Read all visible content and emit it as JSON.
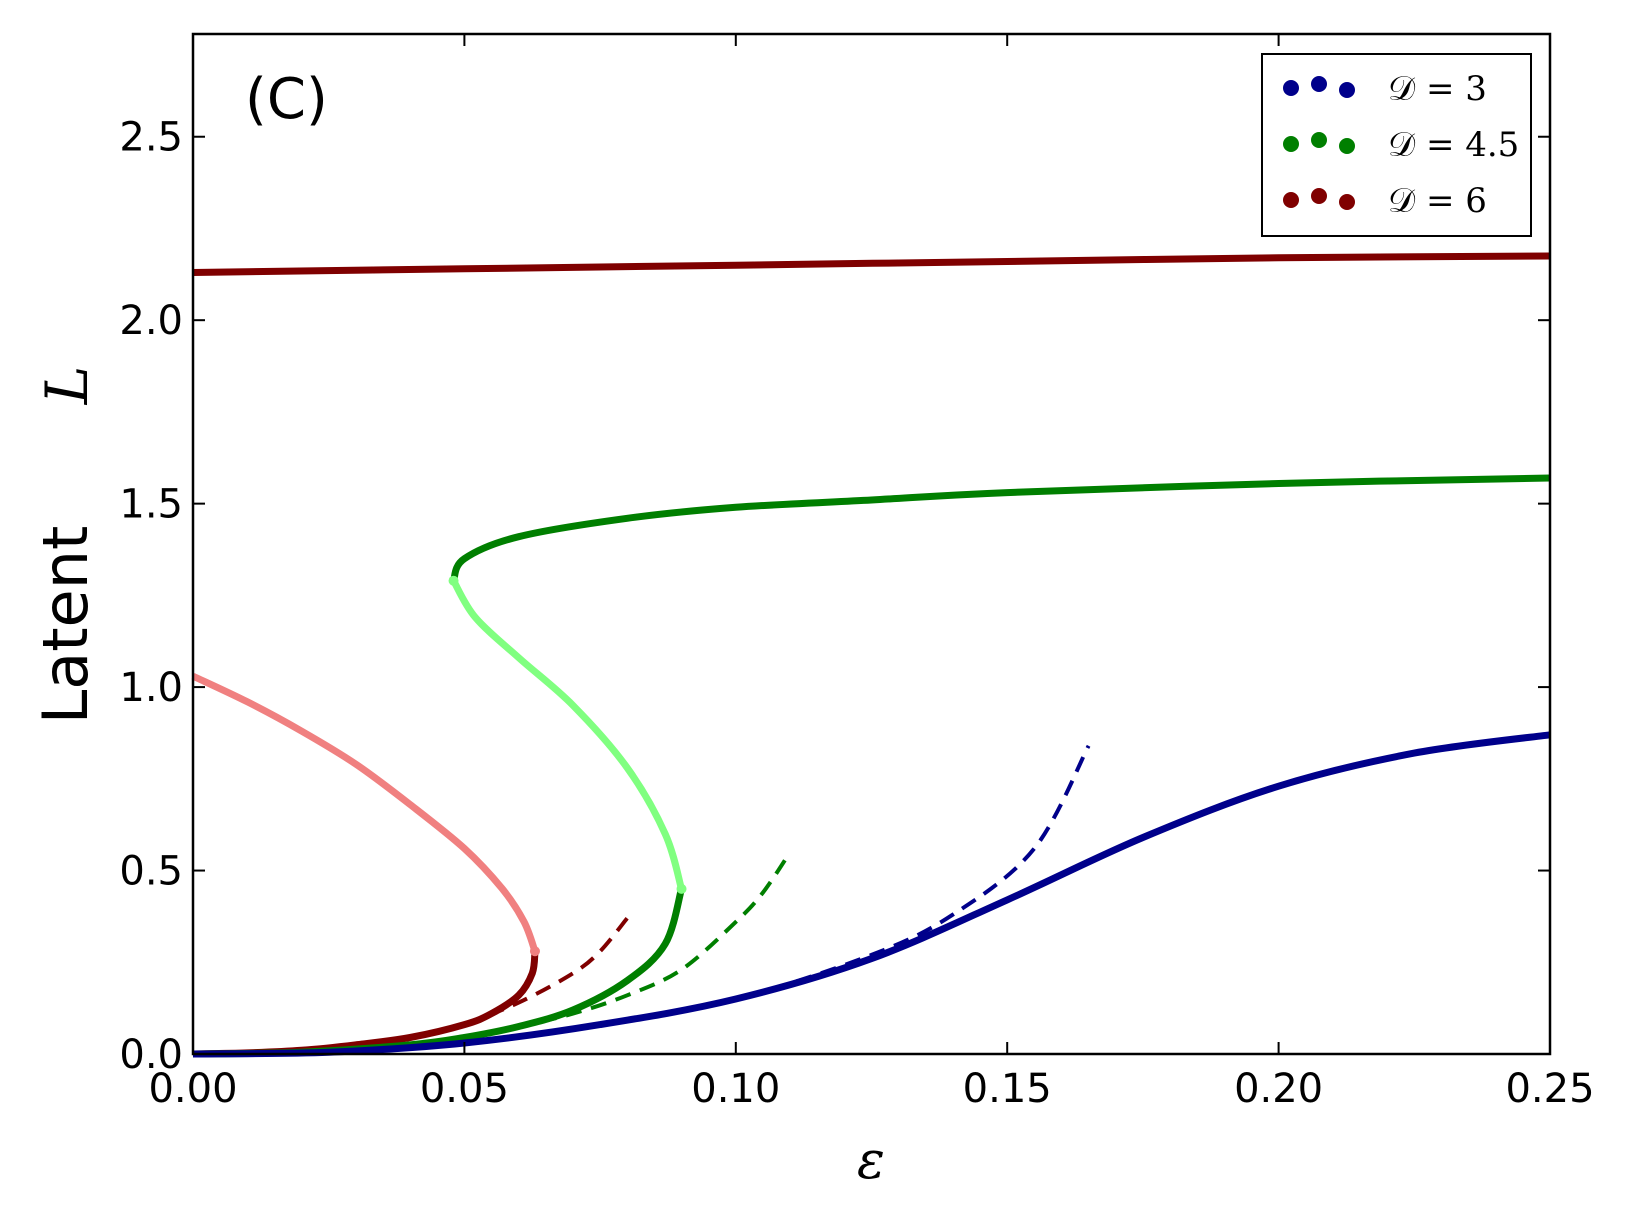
{
  "chart_data": {
    "type": "line",
    "panel_label": "(C)",
    "xlabel": "ε",
    "ylabel_text": "Latent",
    "ylabel_symbol": "L",
    "xlim": [
      0.0,
      0.25
    ],
    "ylim": [
      0.0,
      2.78
    ],
    "xticks": [
      0.0,
      0.05,
      0.1,
      0.15,
      0.2,
      0.25
    ],
    "xtick_labels": [
      "0.00",
      "0.05",
      "0.10",
      "0.15",
      "0.20",
      "0.25"
    ],
    "yticks": [
      0.0,
      0.5,
      1.0,
      1.5,
      2.0,
      2.5
    ],
    "ytick_labels": [
      "0.0",
      "0.5",
      "1.0",
      "1.5",
      "2.0",
      "2.5"
    ],
    "grid": false,
    "legend": {
      "position": "top-right",
      "entries": [
        {
          "label": "𝒟 = 3",
          "color": "#00008b"
        },
        {
          "label": "𝒟 = 4.5",
          "color": "#007f00"
        },
        {
          "label": "𝒟 = 6",
          "color": "#800000"
        }
      ]
    },
    "series": [
      {
        "name": "D=6 upper stable",
        "color": "#7f0000",
        "style": "solid",
        "points": [
          [
            0.0,
            2.13
          ],
          [
            0.05,
            2.14
          ],
          [
            0.1,
            2.15
          ],
          [
            0.15,
            2.16
          ],
          [
            0.2,
            2.17
          ],
          [
            0.25,
            2.175
          ]
        ]
      },
      {
        "name": "D=6 unstable",
        "color": "#f08080",
        "style": "solid",
        "points": [
          [
            0.0,
            1.03
          ],
          [
            0.01,
            0.96
          ],
          [
            0.02,
            0.88
          ],
          [
            0.03,
            0.79
          ],
          [
            0.04,
            0.68
          ],
          [
            0.05,
            0.56
          ],
          [
            0.057,
            0.45
          ],
          [
            0.061,
            0.36
          ],
          [
            0.063,
            0.28
          ]
        ]
      },
      {
        "name": "D=6 lower stable",
        "color": "#800000",
        "style": "solid",
        "points": [
          [
            0.0,
            0.0
          ],
          [
            0.01,
            0.003
          ],
          [
            0.02,
            0.01
          ],
          [
            0.03,
            0.025
          ],
          [
            0.04,
            0.045
          ],
          [
            0.05,
            0.08
          ],
          [
            0.055,
            0.11
          ],
          [
            0.06,
            0.16
          ],
          [
            0.0625,
            0.22
          ],
          [
            0.063,
            0.28
          ]
        ]
      },
      {
        "name": "D=6 approx",
        "color": "#800000",
        "style": "dashed",
        "points": [
          [
            0.05,
            0.08
          ],
          [
            0.06,
            0.14
          ],
          [
            0.07,
            0.22
          ],
          [
            0.075,
            0.28
          ],
          [
            0.08,
            0.37
          ]
        ]
      },
      {
        "name": "D=4.5 upper stable",
        "color": "#007f00",
        "style": "solid",
        "points": [
          [
            0.048,
            1.29
          ],
          [
            0.05,
            1.35
          ],
          [
            0.06,
            1.41
          ],
          [
            0.08,
            1.46
          ],
          [
            0.1,
            1.49
          ],
          [
            0.125,
            1.51
          ],
          [
            0.15,
            1.53
          ],
          [
            0.2,
            1.555
          ],
          [
            0.25,
            1.57
          ]
        ]
      },
      {
        "name": "D=4.5 unstable",
        "color": "#80ff80",
        "style": "solid",
        "points": [
          [
            0.048,
            1.29
          ],
          [
            0.052,
            1.19
          ],
          [
            0.06,
            1.08
          ],
          [
            0.07,
            0.95
          ],
          [
            0.08,
            0.78
          ],
          [
            0.087,
            0.6
          ],
          [
            0.09,
            0.45
          ]
        ]
      },
      {
        "name": "D=4.5 lower stable",
        "color": "#007f00",
        "style": "solid",
        "points": [
          [
            0.0,
            0.0
          ],
          [
            0.02,
            0.005
          ],
          [
            0.04,
            0.025
          ],
          [
            0.05,
            0.045
          ],
          [
            0.06,
            0.075
          ],
          [
            0.07,
            0.12
          ],
          [
            0.08,
            0.2
          ],
          [
            0.087,
            0.3
          ],
          [
            0.09,
            0.45
          ]
        ]
      },
      {
        "name": "D=4.5 approx",
        "color": "#007f00",
        "style": "dashed",
        "points": [
          [
            0.05,
            0.045
          ],
          [
            0.06,
            0.075
          ],
          [
            0.07,
            0.11
          ],
          [
            0.08,
            0.16
          ],
          [
            0.09,
            0.23
          ],
          [
            0.1,
            0.36
          ],
          [
            0.105,
            0.44
          ],
          [
            0.11,
            0.55
          ]
        ]
      },
      {
        "name": "D=3 stable",
        "color": "#00008b",
        "style": "solid",
        "points": [
          [
            0.0,
            0.0
          ],
          [
            0.025,
            0.005
          ],
          [
            0.05,
            0.03
          ],
          [
            0.075,
            0.08
          ],
          [
            0.1,
            0.15
          ],
          [
            0.125,
            0.26
          ],
          [
            0.15,
            0.42
          ],
          [
            0.175,
            0.59
          ],
          [
            0.2,
            0.73
          ],
          [
            0.225,
            0.82
          ],
          [
            0.25,
            0.87
          ]
        ]
      },
      {
        "name": "D=3 approx",
        "color": "#00008b",
        "style": "dashed",
        "points": [
          [
            0.05,
            0.03
          ],
          [
            0.075,
            0.08
          ],
          [
            0.1,
            0.15
          ],
          [
            0.125,
            0.27
          ],
          [
            0.14,
            0.38
          ],
          [
            0.155,
            0.56
          ],
          [
            0.165,
            0.84
          ]
        ]
      }
    ]
  }
}
